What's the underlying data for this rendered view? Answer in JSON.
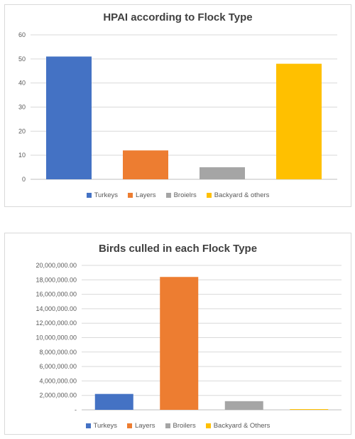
{
  "chart_data": [
    {
      "type": "bar",
      "title": "HPAI according to Flock Type",
      "categories": [
        "Turkeys",
        "Layers",
        "Broielrs",
        "Backyard & others"
      ],
      "values": [
        51,
        12,
        5,
        48
      ],
      "colors": [
        "#4472c4",
        "#ed7d31",
        "#a5a5a5",
        "#ffc000"
      ],
      "ylim": [
        0,
        60
      ],
      "yticks": [
        0,
        10,
        20,
        30,
        40,
        50,
        60
      ],
      "ytick_labels": [
        "0",
        "10",
        "20",
        "30",
        "40",
        "50",
        "60"
      ],
      "grid": true,
      "legend": "bottom",
      "xlabel": "",
      "ylabel": ""
    },
    {
      "type": "bar",
      "title": "Birds culled in each Flock Type",
      "categories": [
        "Turkeys",
        "Layers",
        "Broilers",
        "Backyard & Others"
      ],
      "values": [
        2200000,
        18400000,
        1200000,
        60000
      ],
      "colors": [
        "#4472c4",
        "#ed7d31",
        "#a5a5a5",
        "#ffc000"
      ],
      "ylim": [
        0,
        20000000
      ],
      "yticks": [
        0,
        2000000,
        4000000,
        6000000,
        8000000,
        10000000,
        12000000,
        14000000,
        16000000,
        18000000,
        20000000
      ],
      "ytick_labels": [
        "-",
        "2,000,000.00",
        "4,000,000.00",
        "6,000,000.00",
        "8,000,000.00",
        "10,000,000.00",
        "12,000,000.00",
        "14,000,000.00",
        "16,000,000.00",
        "18,000,000.00",
        "20,000,000.00"
      ],
      "grid": true,
      "legend": "bottom",
      "xlabel": "",
      "ylabel": ""
    }
  ]
}
